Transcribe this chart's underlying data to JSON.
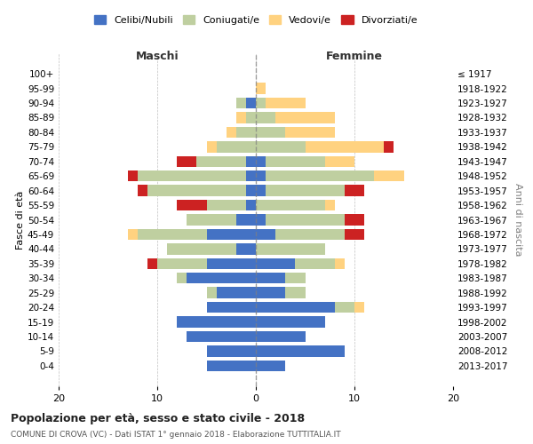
{
  "age_groups": [
    "0-4",
    "5-9",
    "10-14",
    "15-19",
    "20-24",
    "25-29",
    "30-34",
    "35-39",
    "40-44",
    "45-49",
    "50-54",
    "55-59",
    "60-64",
    "65-69",
    "70-74",
    "75-79",
    "80-84",
    "85-89",
    "90-94",
    "95-99",
    "100+"
  ],
  "birth_years": [
    "2013-2017",
    "2008-2012",
    "2003-2007",
    "1998-2002",
    "1993-1997",
    "1988-1992",
    "1983-1987",
    "1978-1982",
    "1973-1977",
    "1968-1972",
    "1963-1967",
    "1958-1962",
    "1953-1957",
    "1948-1952",
    "1943-1947",
    "1938-1942",
    "1933-1937",
    "1928-1932",
    "1923-1927",
    "1918-1922",
    "≤ 1917"
  ],
  "colors": {
    "celibe": "#4472C4",
    "coniugato": "#BFCFA0",
    "vedovo": "#FFD280",
    "divorziato": "#CC2222"
  },
  "maschi": {
    "celibe": [
      5,
      5,
      7,
      8,
      5,
      4,
      7,
      5,
      2,
      5,
      2,
      1,
      1,
      1,
      1,
      0,
      0,
      0,
      1,
      0,
      0
    ],
    "coniugato": [
      0,
      0,
      0,
      0,
      0,
      1,
      1,
      5,
      7,
      7,
      5,
      4,
      10,
      11,
      5,
      4,
      2,
      1,
      1,
      0,
      0
    ],
    "vedovo": [
      0,
      0,
      0,
      0,
      0,
      0,
      0,
      0,
      0,
      1,
      0,
      0,
      0,
      0,
      0,
      1,
      1,
      1,
      0,
      0,
      0
    ],
    "divorziato": [
      0,
      0,
      0,
      0,
      0,
      0,
      0,
      1,
      0,
      0,
      0,
      3,
      1,
      1,
      2,
      0,
      0,
      0,
      0,
      0,
      0
    ]
  },
  "femmine": {
    "celibe": [
      3,
      9,
      5,
      7,
      8,
      3,
      3,
      4,
      0,
      2,
      1,
      0,
      1,
      1,
      1,
      0,
      0,
      0,
      0,
      0,
      0
    ],
    "coniugato": [
      0,
      0,
      0,
      0,
      2,
      2,
      2,
      4,
      7,
      7,
      8,
      7,
      8,
      11,
      6,
      5,
      3,
      2,
      1,
      0,
      0
    ],
    "vedovo": [
      0,
      0,
      0,
      0,
      1,
      0,
      0,
      1,
      0,
      0,
      0,
      1,
      0,
      3,
      3,
      8,
      5,
      6,
      4,
      1,
      0
    ],
    "divorziato": [
      0,
      0,
      0,
      0,
      0,
      0,
      0,
      0,
      0,
      2,
      2,
      0,
      2,
      0,
      0,
      1,
      0,
      0,
      0,
      0,
      0
    ]
  },
  "xlim": 20,
  "title": "Popolazione per età, sesso e stato civile - 2018",
  "subtitle": "COMUNE DI CROVA (VC) - Dati ISTAT 1° gennaio 2018 - Elaborazione TUTTITALIA.IT",
  "ylabel_left": "Fasce di età",
  "ylabel_right": "Anni di nascita",
  "xlabel_left": "Maschi",
  "xlabel_right": "Femmine",
  "legend_labels": [
    "Celibi/Nubili",
    "Coniugati/e",
    "Vedovi/e",
    "Divorziati/e"
  ],
  "background_color": "#ffffff"
}
